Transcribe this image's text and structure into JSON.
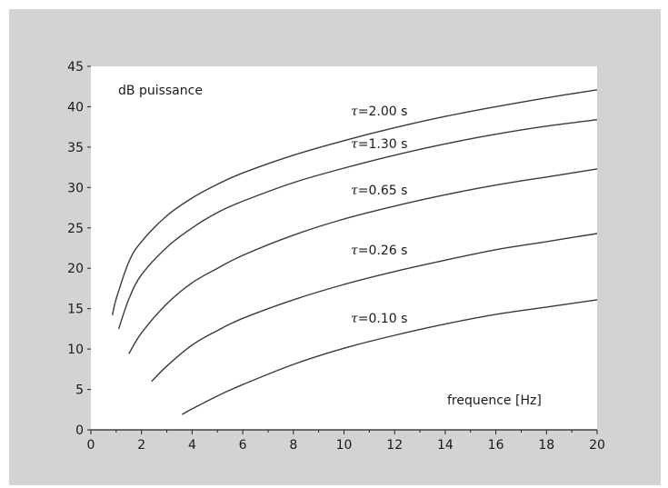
{
  "chart_data": {
    "type": "line",
    "title": "",
    "xlabel": "frequence [Hz]",
    "ylabel": "dB puissance",
    "xlim": [
      0,
      20
    ],
    "ylim": [
      0,
      45
    ],
    "x_ticks": [
      0,
      2,
      4,
      6,
      8,
      10,
      12,
      14,
      16,
      18,
      20
    ],
    "y_ticks": [
      0,
      5,
      10,
      15,
      20,
      25,
      30,
      35,
      40,
      45
    ],
    "grid": false,
    "legend": "none",
    "colors": {
      "background": "#d3d3d3",
      "plot_area": "#ffffff",
      "line": "#3a3a3a"
    },
    "series": [
      {
        "name": "τ=2.00 s",
        "tau_symbol": "τ",
        "label_text": "=2.00 s",
        "x": [
          0.85,
          1,
          1.5,
          2,
          3,
          4,
          5,
          6,
          8,
          10,
          12,
          14,
          16,
          18,
          20
        ],
        "y": [
          14.2,
          16.2,
          20.8,
          23.3,
          26.5,
          28.7,
          30.4,
          31.8,
          34.0,
          35.8,
          37.4,
          38.8,
          40.0,
          41.1,
          42.1
        ]
      },
      {
        "name": "τ=1.30 s",
        "tau_symbol": "τ",
        "label_text": "=1.30 s",
        "x": [
          1.1,
          1.5,
          2,
          3,
          4,
          5,
          6,
          8,
          10,
          12,
          14,
          16,
          18,
          20
        ],
        "y": [
          12.5,
          16.2,
          19.2,
          22.6,
          25.0,
          26.9,
          28.3,
          30.6,
          32.4,
          34.0,
          35.4,
          36.6,
          37.6,
          38.4
        ]
      },
      {
        "name": "τ=0.65 s",
        "tau_symbol": "τ",
        "label_text": "=0.65 s",
        "x": [
          1.5,
          2,
          3,
          4,
          5,
          6,
          8,
          10,
          12,
          14,
          16,
          18,
          20
        ],
        "y": [
          9.4,
          12.0,
          15.6,
          18.2,
          20.0,
          21.6,
          24.1,
          26.1,
          27.7,
          29.1,
          30.3,
          31.3,
          32.3
        ]
      },
      {
        "name": "τ=0.26 s",
        "tau_symbol": "τ",
        "label_text": "=0.26 s",
        "x": [
          2.4,
          3,
          4,
          5,
          6,
          8,
          10,
          12,
          14,
          16,
          18,
          20
        ],
        "y": [
          6.0,
          7.9,
          10.5,
          12.3,
          13.8,
          16.1,
          18.0,
          19.6,
          21.0,
          22.3,
          23.3,
          24.3
        ]
      },
      {
        "name": "τ=0.10 s",
        "tau_symbol": "τ",
        "label_text": "=0.10 s",
        "x": [
          3.6,
          4,
          5,
          6,
          8,
          10,
          12,
          14,
          16,
          18,
          20
        ],
        "y": [
          1.9,
          2.6,
          4.2,
          5.6,
          8.1,
          10.1,
          11.7,
          13.1,
          14.3,
          15.2,
          16.1
        ]
      }
    ]
  }
}
